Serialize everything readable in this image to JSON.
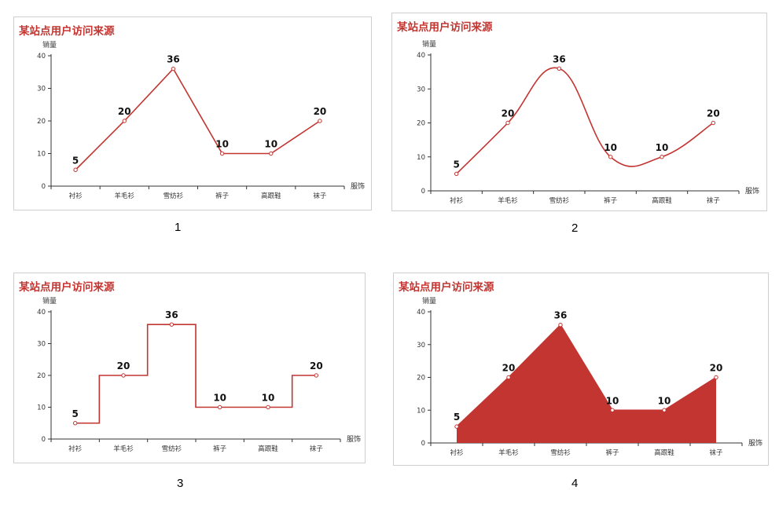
{
  "chart_data": [
    {
      "type": "line",
      "variant": "straight",
      "title": "某站点用户访问来源",
      "xlabel": "服饰",
      "ylabel": "销量",
      "caption": "1",
      "categories": [
        "衬衫",
        "羊毛衫",
        "雪纺衫",
        "裤子",
        "高跟鞋",
        "袜子"
      ],
      "series": [
        {
          "values": [
            5,
            20,
            36,
            10,
            10,
            20
          ]
        }
      ],
      "ylim": [
        0,
        40
      ],
      "yticks": [
        "0",
        "10",
        "20",
        "30",
        "40"
      ],
      "color": "#c23531",
      "grid": false
    },
    {
      "type": "line",
      "variant": "smooth",
      "title": "某站点用户访问来源",
      "xlabel": "服饰",
      "ylabel": "销量",
      "caption": "2",
      "categories": [
        "衬衫",
        "羊毛衫",
        "雪纺衫",
        "裤子",
        "高跟鞋",
        "袜子"
      ],
      "series": [
        {
          "values": [
            5,
            20,
            36,
            10,
            10,
            20
          ]
        }
      ],
      "ylim": [
        0,
        40
      ],
      "yticks": [
        "0",
        "10",
        "20",
        "30",
        "40"
      ],
      "color": "#c23531",
      "grid": false
    },
    {
      "type": "line",
      "variant": "step",
      "title": "某站点用户访问来源",
      "xlabel": "服饰",
      "ylabel": "销量",
      "caption": "3",
      "categories": [
        "衬衫",
        "羊毛衫",
        "雪纺衫",
        "裤子",
        "高跟鞋",
        "袜子"
      ],
      "series": [
        {
          "values": [
            5,
            20,
            36,
            10,
            10,
            20
          ]
        }
      ],
      "ylim": [
        0,
        40
      ],
      "yticks": [
        "0",
        "10",
        "20",
        "30",
        "40"
      ],
      "color": "#c23531",
      "grid": false
    },
    {
      "type": "area",
      "variant": "straight",
      "title": "某站点用户访问来源",
      "xlabel": "服饰",
      "ylabel": "销量",
      "caption": "4",
      "categories": [
        "衬衫",
        "羊毛衫",
        "雪纺衫",
        "裤子",
        "高跟鞋",
        "袜子"
      ],
      "series": [
        {
          "values": [
            5,
            20,
            36,
            10,
            10,
            20
          ]
        }
      ],
      "ylim": [
        0,
        40
      ],
      "yticks": [
        "0",
        "10",
        "20",
        "30",
        "40"
      ],
      "color": "#c23531",
      "grid": false
    }
  ]
}
